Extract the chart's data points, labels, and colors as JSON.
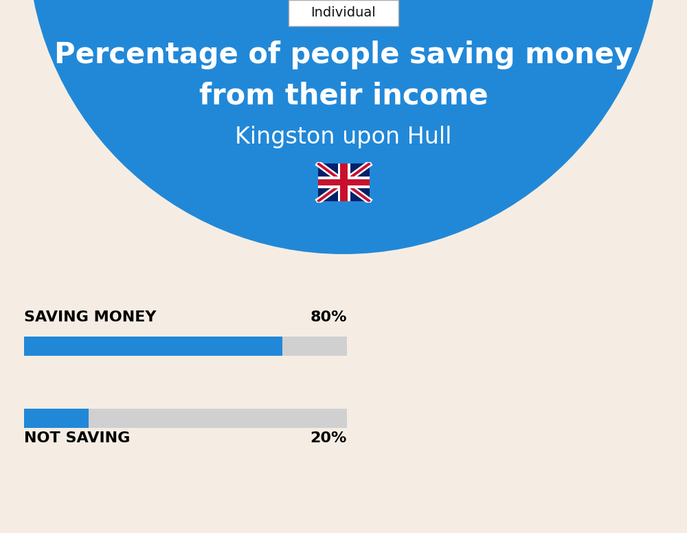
{
  "background_color": "#f5ede3",
  "header_bg_color": "#2188d8",
  "title_line1": "Percentage of people saving money",
  "title_line2": "from their income",
  "subtitle": "Kingston upon Hull",
  "tag_text": "Individual",
  "bar1_label": "SAVING MONEY",
  "bar1_value": 80,
  "bar1_pct": "80%",
  "bar2_label": "NOT SAVING",
  "bar2_value": 20,
  "bar2_pct": "20%",
  "bar_color": "#2188d8",
  "bar_bg_color": "#d0d0d0",
  "title_color": "#ffffff",
  "subtitle_color": "#ffffff",
  "label_color": "#000000",
  "pct_color": "#000000",
  "tag_border_color": "#aaaaaa",
  "tag_text_color": "#111111",
  "fig_width": 10.0,
  "fig_height": 7.76,
  "dpi": 100
}
